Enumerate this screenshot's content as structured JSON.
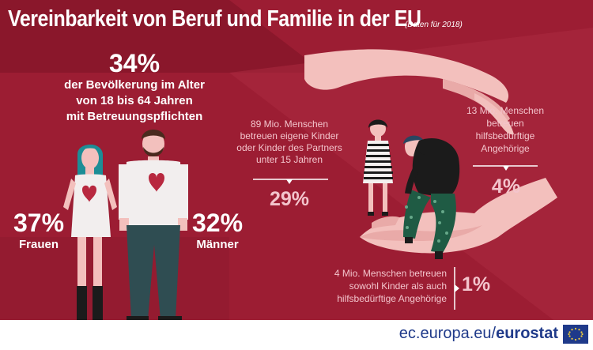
{
  "title": "Vereinbarkeit von Beruf und Familie in der EU",
  "title_note": "(Daten für 2018)",
  "overall": {
    "value": "34%",
    "line1": "der Bevölkerung im Alter",
    "line2": "von 18 bis 64 Jahren",
    "line3": "mit Betreuungspflichten"
  },
  "women": {
    "value": "37%",
    "label": "Frauen"
  },
  "men": {
    "value": "32%",
    "label": "Männer"
  },
  "children": {
    "line1": "89 Mio. Menschen",
    "line2": "betreuen eigene Kinder",
    "line3": "oder Kinder des Partners",
    "line4": "unter 15 Jahren",
    "value": "29%"
  },
  "dependants": {
    "line1": "13  Mio. Menschen",
    "line2": "betreuen",
    "line3": "hilfsbedürftige",
    "line4": "Angehörige",
    "value": "4%"
  },
  "both": {
    "line1": "4 Mio. Menschen betreuen",
    "line2": "sowohl Kinder als auch",
    "line3": "hilfsbedürftige Angehörige",
    "value": "1%"
  },
  "footer": {
    "site": "ec.europa.eu/",
    "brand": "eurostat"
  },
  "colors": {
    "background": "#9c1d33",
    "skin": "#f3c0bd",
    "accent": "#f3c4cc",
    "eu_blue": "#1f3a8a"
  }
}
